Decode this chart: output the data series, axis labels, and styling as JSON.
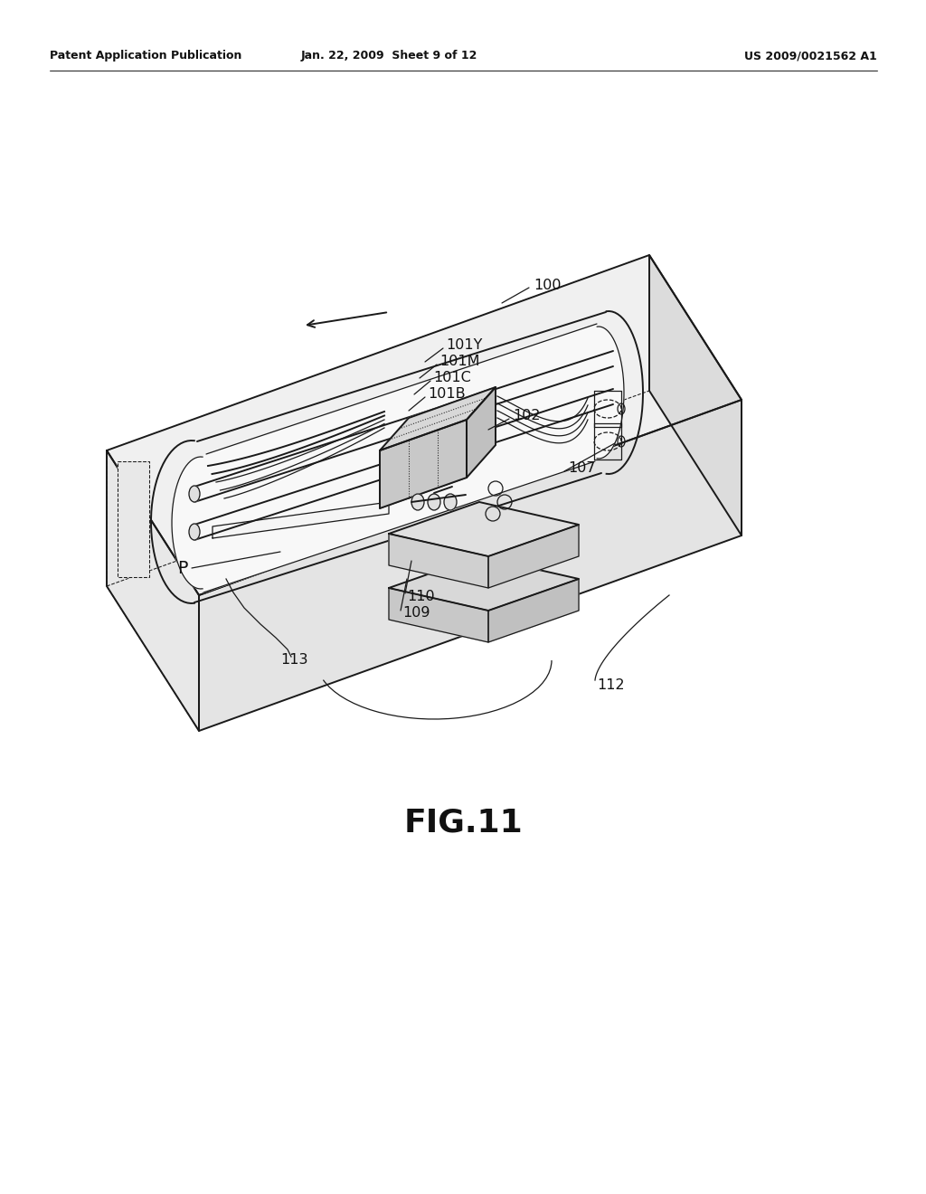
{
  "bg_color": "#ffffff",
  "fig_title": "FIG.11",
  "header_left": "Patent Application Publication",
  "header_mid": "Jan. 22, 2009  Sheet 9 of 12",
  "header_right": "US 2009/0021562 A1",
  "line_color": "#1a1a1a",
  "lw_main": 1.4,
  "lw_thin": 0.9,
  "lw_dashed": 0.75,
  "label_fs": 11.5,
  "header_fs": 9.0,
  "title_fs": 26
}
